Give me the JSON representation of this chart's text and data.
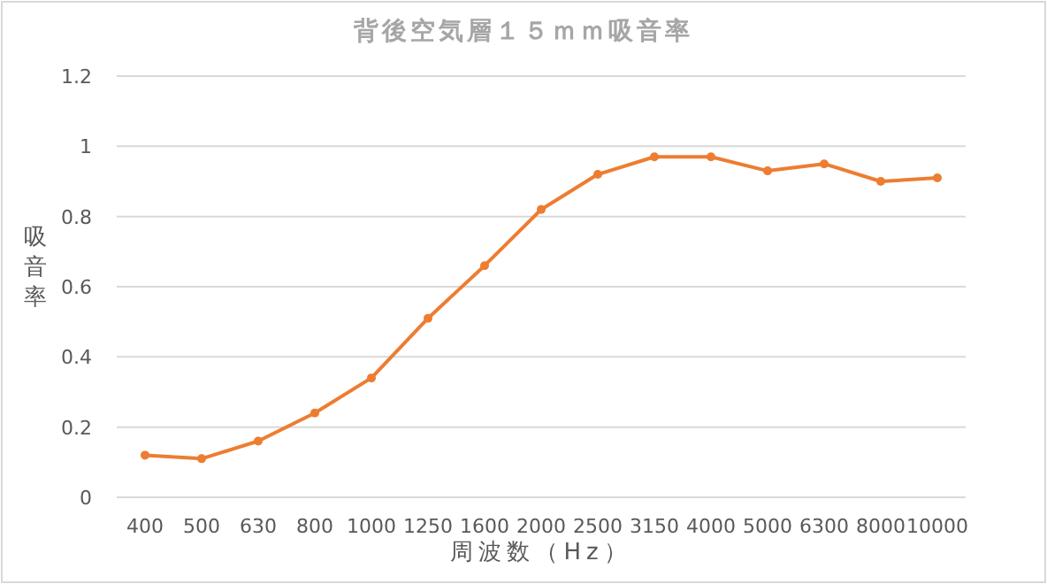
{
  "chart_data": {
    "type": "line",
    "title": "背後空気層１５ｍｍ吸音率",
    "xlabel": "周波数（Hz）",
    "ylabel": "吸音率",
    "categories": [
      "400",
      "500",
      "630",
      "800",
      "1000",
      "1250",
      "1600",
      "2000",
      "2500",
      "3150",
      "4000",
      "5000",
      "6300",
      "8000",
      "10000"
    ],
    "series": [
      {
        "color": "#ed7d31",
        "values": [
          0.12,
          0.11,
          0.16,
          0.24,
          0.34,
          0.51,
          0.66,
          0.82,
          0.92,
          0.97,
          0.97,
          0.93,
          0.95,
          0.9,
          0.91
        ]
      }
    ],
    "ylim": [
      0,
      1.2
    ],
    "yticks": [
      0,
      0.2,
      0.4,
      0.6,
      0.8,
      1,
      1.2
    ],
    "grid": "y",
    "marker": "circle",
    "line_style": "solid"
  }
}
